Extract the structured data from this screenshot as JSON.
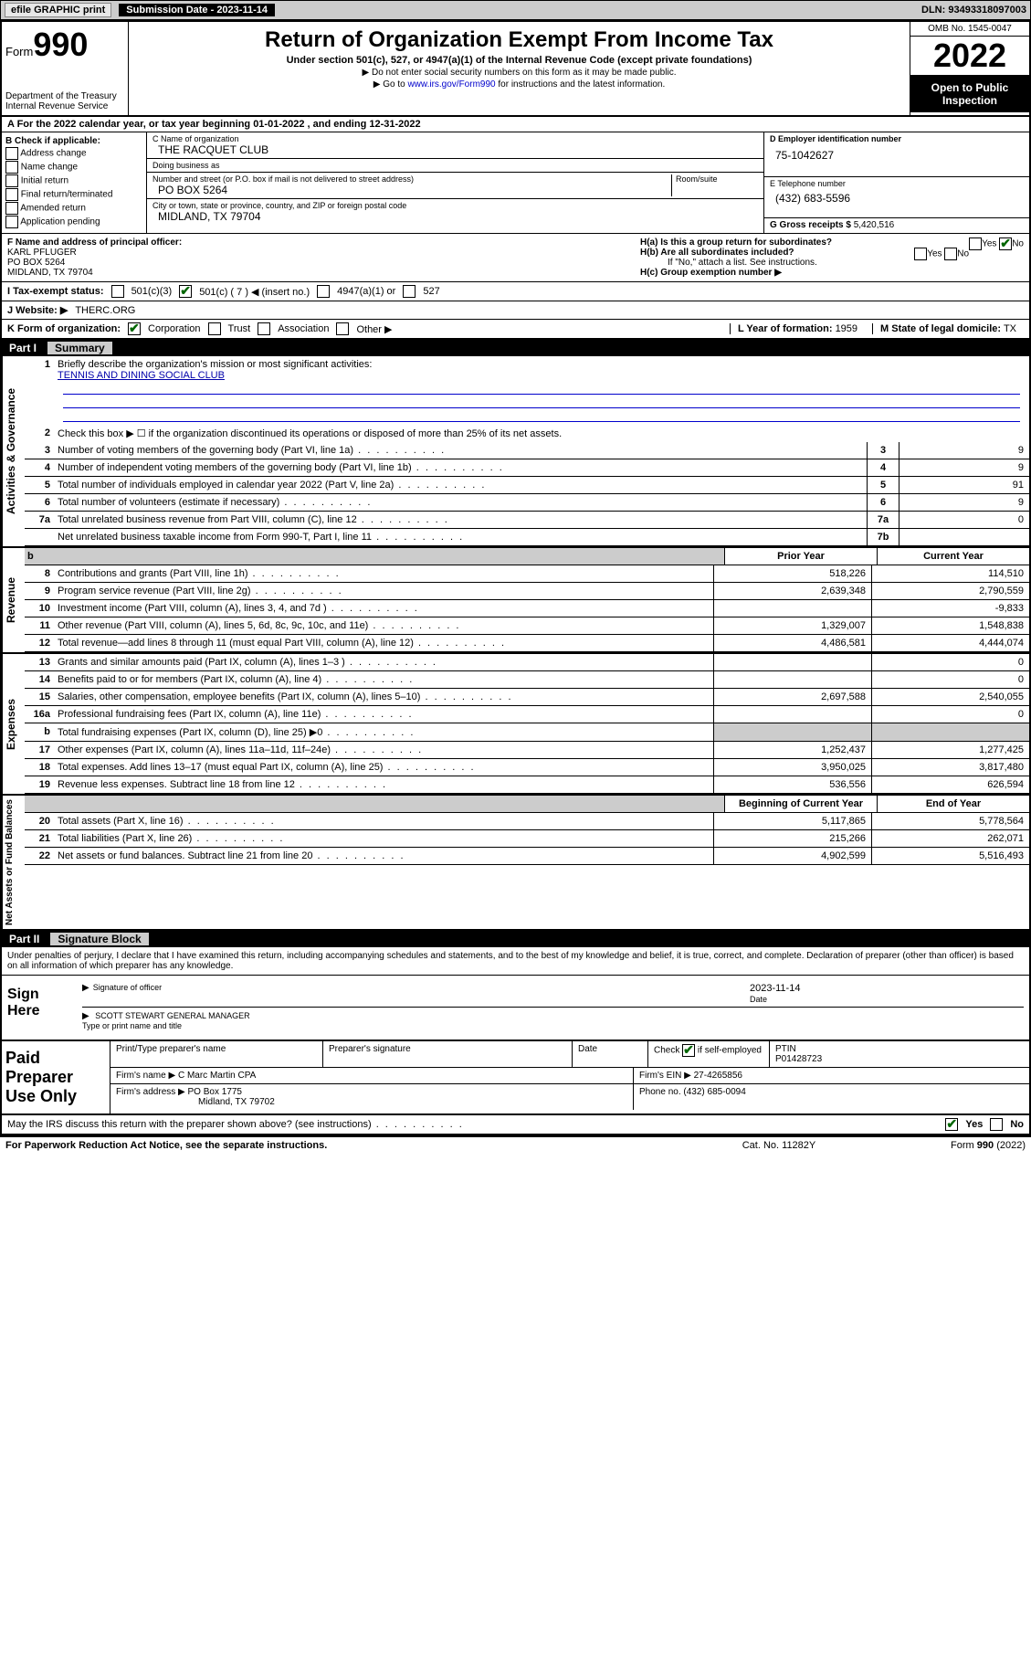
{
  "topbar": {
    "efile": "efile GRAPHIC print",
    "submission_label": "Submission Date - 2023-11-14",
    "dln": "DLN: 93493318097003"
  },
  "header": {
    "form_label": "Form",
    "form_num": "990",
    "dept": "Department of the Treasury",
    "irs": "Internal Revenue Service",
    "title": "Return of Organization Exempt From Income Tax",
    "sub1": "Under section 501(c), 527, or 4947(a)(1) of the Internal Revenue Code (except private foundations)",
    "sub2": "▶ Do not enter social security numbers on this form as it may be made public.",
    "sub3_pre": "▶ Go to ",
    "sub3_link": "www.irs.gov/Form990",
    "sub3_post": " for instructions and the latest information.",
    "omb": "OMB No. 1545-0047",
    "year": "2022",
    "open": "Open to Public Inspection"
  },
  "rowA": "A For the 2022 calendar year, or tax year beginning 01-01-2022   , and ending 12-31-2022",
  "boxB": {
    "title": "B Check if applicable:",
    "opts": [
      "Address change",
      "Name change",
      "Initial return",
      "Final return/terminated",
      "Amended return",
      "Application pending"
    ]
  },
  "boxC": {
    "name_label": "C Name of organization",
    "name": "THE RACQUET CLUB",
    "dba_label": "Doing business as",
    "dba": "",
    "addr_label": "Number and street (or P.O. box if mail is not delivered to street address)",
    "room_label": "Room/suite",
    "addr": "PO BOX 5264",
    "city_label": "City or town, state or province, country, and ZIP or foreign postal code",
    "city": "MIDLAND, TX  79704"
  },
  "boxD": {
    "label": "D Employer identification number",
    "val": "75-1042627"
  },
  "boxE": {
    "label": "E Telephone number",
    "val": "(432) 683-5596"
  },
  "boxG": {
    "label": "G Gross receipts $",
    "val": "5,420,516"
  },
  "boxF": {
    "label": "F Name and address of principal officer:",
    "name": "KARL PFLUGER",
    "addr1": "PO BOX 5264",
    "addr2": "MIDLAND, TX  79704"
  },
  "boxH": {
    "ha": "H(a)  Is this a group return for subordinates?",
    "ha_yes": "Yes",
    "ha_no": "No",
    "hb": "H(b)  Are all subordinates included?",
    "hb_yes": "Yes",
    "hb_no": "No",
    "hb_note": "If \"No,\" attach a list. See instructions.",
    "hc": "H(c)  Group exemption number ▶"
  },
  "rowI": {
    "label": "I   Tax-exempt status:",
    "o1": "501(c)(3)",
    "o2": "501(c) ( 7 ) ◀ (insert no.)",
    "o3": "4947(a)(1) or",
    "o4": "527"
  },
  "rowJ": {
    "label": "J   Website: ▶",
    "val": "THERC.ORG"
  },
  "rowK": {
    "label": "K Form of organization:",
    "o1": "Corporation",
    "o2": "Trust",
    "o3": "Association",
    "o4": "Other ▶"
  },
  "rowL": {
    "label": "L Year of formation:",
    "val": "1959"
  },
  "rowM": {
    "label": "M State of legal domicile:",
    "val": "TX"
  },
  "partI": {
    "label": "Part I",
    "title": "Summary"
  },
  "summary": {
    "side1": "Activities & Governance",
    "side2": "Revenue",
    "side3": "Expenses",
    "side4": "Net Assets or Fund Balances",
    "l1": "Briefly describe the organization's mission or most significant activities:",
    "l1_val": "TENNIS AND DINING SOCIAL CLUB",
    "l2": "Check this box ▶ ☐  if the organization discontinued its operations or disposed of more than 25% of its net assets.",
    "lines_gov": [
      {
        "n": "3",
        "d": "Number of voting members of the governing body (Part VI, line 1a)",
        "b": "3",
        "v": "9"
      },
      {
        "n": "4",
        "d": "Number of independent voting members of the governing body (Part VI, line 1b)",
        "b": "4",
        "v": "9"
      },
      {
        "n": "5",
        "d": "Total number of individuals employed in calendar year 2022 (Part V, line 2a)",
        "b": "5",
        "v": "91"
      },
      {
        "n": "6",
        "d": "Total number of volunteers (estimate if necessary)",
        "b": "6",
        "v": "9"
      },
      {
        "n": "7a",
        "d": "Total unrelated business revenue from Part VIII, column (C), line 12",
        "b": "7a",
        "v": "0"
      },
      {
        "n": "",
        "d": "Net unrelated business taxable income from Form 990-T, Part I, line 11",
        "b": "7b",
        "v": ""
      }
    ],
    "col_prior": "Prior Year",
    "col_current": "Current Year",
    "rev": [
      {
        "n": "8",
        "d": "Contributions and grants (Part VIII, line 1h)",
        "c1": "518,226",
        "c2": "114,510"
      },
      {
        "n": "9",
        "d": "Program service revenue (Part VIII, line 2g)",
        "c1": "2,639,348",
        "c2": "2,790,559"
      },
      {
        "n": "10",
        "d": "Investment income (Part VIII, column (A), lines 3, 4, and 7d )",
        "c1": "",
        "c2": "-9,833"
      },
      {
        "n": "11",
        "d": "Other revenue (Part VIII, column (A), lines 5, 6d, 8c, 9c, 10c, and 11e)",
        "c1": "1,329,007",
        "c2": "1,548,838"
      },
      {
        "n": "12",
        "d": "Total revenue—add lines 8 through 11 (must equal Part VIII, column (A), line 12)",
        "c1": "4,486,581",
        "c2": "4,444,074"
      }
    ],
    "exp": [
      {
        "n": "13",
        "d": "Grants and similar amounts paid (Part IX, column (A), lines 1–3 )",
        "c1": "",
        "c2": "0"
      },
      {
        "n": "14",
        "d": "Benefits paid to or for members (Part IX, column (A), line 4)",
        "c1": "",
        "c2": "0"
      },
      {
        "n": "15",
        "d": "Salaries, other compensation, employee benefits (Part IX, column (A), lines 5–10)",
        "c1": "2,697,588",
        "c2": "2,540,055"
      },
      {
        "n": "16a",
        "d": "Professional fundraising fees (Part IX, column (A), line 11e)",
        "c1": "",
        "c2": "0"
      },
      {
        "n": "b",
        "d": "Total fundraising expenses (Part IX, column (D), line 25) ▶0",
        "c1": "shade",
        "c2": "shade"
      },
      {
        "n": "17",
        "d": "Other expenses (Part IX, column (A), lines 11a–11d, 11f–24e)",
        "c1": "1,252,437",
        "c2": "1,277,425"
      },
      {
        "n": "18",
        "d": "Total expenses. Add lines 13–17 (must equal Part IX, column (A), line 25)",
        "c1": "3,950,025",
        "c2": "3,817,480"
      },
      {
        "n": "19",
        "d": "Revenue less expenses. Subtract line 18 from line 12",
        "c1": "536,556",
        "c2": "626,594"
      }
    ],
    "col_begin": "Beginning of Current Year",
    "col_end": "End of Year",
    "net": [
      {
        "n": "20",
        "d": "Total assets (Part X, line 16)",
        "c1": "5,117,865",
        "c2": "5,778,564"
      },
      {
        "n": "21",
        "d": "Total liabilities (Part X, line 26)",
        "c1": "215,266",
        "c2": "262,071"
      },
      {
        "n": "22",
        "d": "Net assets or fund balances. Subtract line 21 from line 20",
        "c1": "4,902,599",
        "c2": "5,516,493"
      }
    ]
  },
  "partII": {
    "label": "Part II",
    "title": "Signature Block"
  },
  "sig": {
    "decl": "Under penalties of perjury, I declare that I have examined this return, including accompanying schedules and statements, and to the best of my knowledge and belief, it is true, correct, and complete. Declaration of preparer (other than officer) is based on all information of which preparer has any knowledge.",
    "sign_here": "Sign Here",
    "sig_officer": "Signature of officer",
    "date_l": "Date",
    "date_v": "2023-11-14",
    "name": "SCOTT STEWART  GENERAL MANAGER",
    "name_l": "Type or print name and title"
  },
  "paid": {
    "title": "Paid Preparer Use Only",
    "h1": "Print/Type preparer's name",
    "h2": "Preparer's signature",
    "h3": "Date",
    "h4_pre": "Check",
    "h4_post": "if self-employed",
    "h5": "PTIN",
    "ptin": "P01428723",
    "firm_l": "Firm's name   ▶",
    "firm": "C Marc Martin CPA",
    "ein_l": "Firm's EIN ▶",
    "ein": "27-4265856",
    "addr_l": "Firm's address ▶",
    "addr1": "PO Box 1775",
    "addr2": "Midland, TX  79702",
    "phone_l": "Phone no.",
    "phone": "(432) 685-0094"
  },
  "bottom": {
    "q": "May the IRS discuss this return with the preparer shown above? (see instructions)",
    "yes": "Yes",
    "no": "No",
    "pra": "For Paperwork Reduction Act Notice, see the separate instructions.",
    "cat": "Cat. No. 11282Y",
    "form": "Form 990 (2022)"
  }
}
